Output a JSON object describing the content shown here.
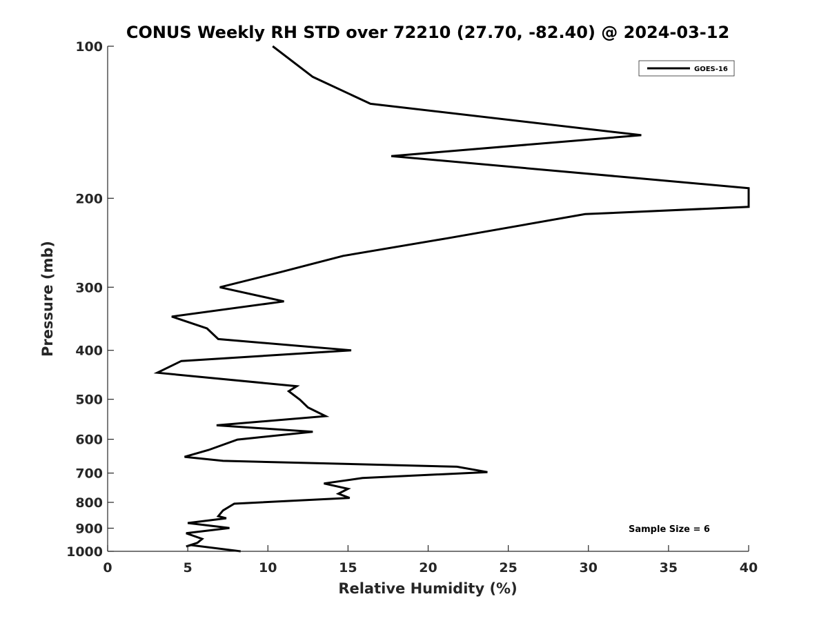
{
  "chart_data": {
    "type": "line",
    "title": "CONUS Weekly RH STD over 72210 (27.70, -82.40) @ 2024-03-12",
    "xlabel": "Relative Humidity (%)",
    "ylabel": "Pressure (mb)",
    "xlim": [
      0,
      40
    ],
    "ylim": [
      1000,
      100
    ],
    "yscale": "log",
    "x_ticks": [
      0,
      5,
      10,
      15,
      20,
      25,
      30,
      35,
      40
    ],
    "x_tick_labels": [
      "0",
      "5",
      "10",
      "15",
      "20",
      "25",
      "30",
      "35",
      "40"
    ],
    "y_ticks": [
      100,
      200,
      300,
      400,
      500,
      600,
      700,
      800,
      900,
      1000
    ],
    "y_tick_labels": [
      "100",
      "200",
      "300",
      "400",
      "500",
      "600",
      "700",
      "800",
      "900",
      "1000"
    ],
    "grid": false,
    "legend": {
      "position": "top-right",
      "entries": [
        "GOES-16"
      ]
    },
    "annotation": "Sample Size = 6",
    "series": [
      {
        "name": "GOES-16",
        "color": "#000000",
        "points": [
          [
            10.3,
            100
          ],
          [
            12.8,
            115
          ],
          [
            16.4,
            130
          ],
          [
            33.3,
            150
          ],
          [
            17.7,
            165
          ],
          [
            40.0,
            191
          ],
          [
            40.0,
            208
          ],
          [
            29.8,
            215
          ],
          [
            21.2,
            240
          ],
          [
            14.7,
            260
          ],
          [
            10.8,
            280
          ],
          [
            7.0,
            300
          ],
          [
            11.0,
            320
          ],
          [
            4.0,
            343
          ],
          [
            6.2,
            362
          ],
          [
            6.9,
            380
          ],
          [
            15.2,
            400
          ],
          [
            4.6,
            420
          ],
          [
            3.1,
            443
          ],
          [
            11.8,
            471
          ],
          [
            11.3,
            482
          ],
          [
            12.0,
            501
          ],
          [
            12.5,
            519
          ],
          [
            13.6,
            540
          ],
          [
            6.8,
            563
          ],
          [
            12.8,
            580
          ],
          [
            8.1,
            601
          ],
          [
            6.3,
            630
          ],
          [
            4.8,
            650
          ],
          [
            7.2,
            662
          ],
          [
            21.8,
            680
          ],
          [
            23.7,
            697
          ],
          [
            15.9,
            716
          ],
          [
            13.5,
            734
          ],
          [
            15.0,
            752
          ],
          [
            14.4,
            769
          ],
          [
            15.1,
            784
          ],
          [
            7.9,
            805
          ],
          [
            7.2,
            830
          ],
          [
            6.9,
            852
          ],
          [
            7.4,
            860
          ],
          [
            5.0,
            879
          ],
          [
            7.6,
            899
          ],
          [
            4.9,
            921
          ],
          [
            5.9,
            945
          ],
          [
            5.6,
            962
          ],
          [
            4.9,
            978
          ],
          [
            5.2,
            972
          ],
          [
            8.3,
            1000
          ]
        ]
      }
    ]
  }
}
